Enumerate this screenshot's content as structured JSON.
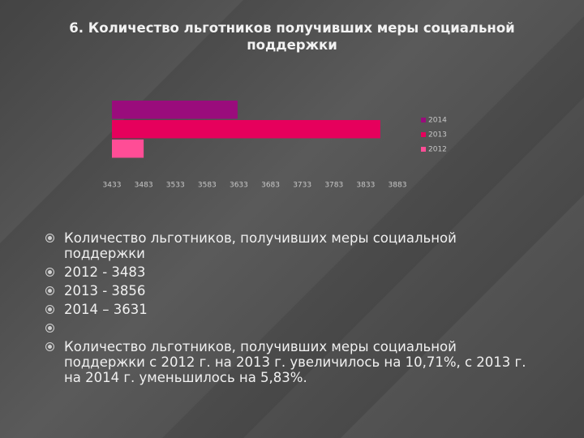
{
  "title": "6. Количество  льготников  получивших меры социальной поддержки",
  "chart_data": {
    "type": "barh",
    "categories": [
      "2014",
      "2013",
      "2012"
    ],
    "values": [
      3631,
      3856,
      3483
    ],
    "colors": [
      "#9a0c7c",
      "#e6005c",
      "#ff4d96"
    ],
    "xlim": [
      3433,
      3883
    ],
    "xticks": [
      3433,
      3483,
      3533,
      3583,
      3633,
      3683,
      3733,
      3783,
      3833,
      3883
    ],
    "grid": false,
    "legend": "right"
  },
  "bullets": [
    "Количество  льготников, получивших меры социальной поддержки",
    "2012 - 3483",
    "2013 - 3856",
    "2014 – 3631",
    "Количество  льготников, получивших меры социальной поддержки  с 2012 г. на 2013 г. увеличилось на 10,71%,   с 2013 г. на 2014 г.  уменьшилось  на 5,83%."
  ]
}
